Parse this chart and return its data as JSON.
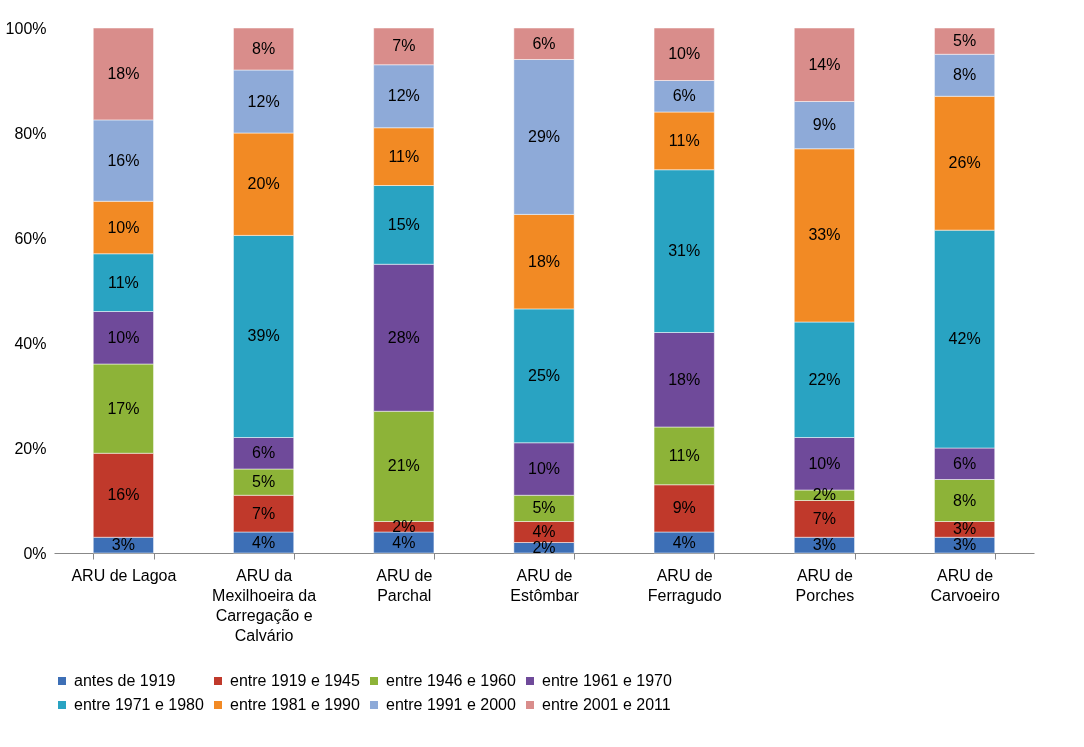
{
  "chart_data": {
    "type": "bar",
    "stacked": true,
    "categories": [
      "ARU de Lagoa",
      "ARU da Mexilhoeira da Carregação e Calvário",
      "ARU de Parchal",
      "ARU de Estômbar",
      "ARU de Ferragudo",
      "ARU de Porches",
      "ARU de Carvoeiro"
    ],
    "series": [
      {
        "name": "antes de 1919",
        "color": "#3d6fb6",
        "values": [
          3,
          4,
          4,
          2,
          4,
          3,
          3
        ],
        "value_labels": [
          "3%",
          "4%",
          "4%",
          "2%",
          "4%",
          "3%",
          "3%"
        ]
      },
      {
        "name": "entre 1919 e 1945",
        "color": "#c0392b",
        "values": [
          16,
          7,
          2,
          4,
          9,
          7,
          3
        ],
        "value_labels": [
          "16%",
          "7%",
          "2%",
          "4%",
          "9%",
          "7%",
          "3%"
        ]
      },
      {
        "name": "entre 1946 e 1960",
        "color": "#8db338",
        "values": [
          17,
          5,
          21,
          5,
          11,
          2,
          8
        ],
        "value_labels": [
          "17%",
          "5%",
          "21%",
          "5%",
          "11%",
          "2%",
          "8%"
        ]
      },
      {
        "name": "entre 1961 e 1970",
        "color": "#6f4a9a",
        "values": [
          10,
          6,
          28,
          10,
          18,
          10,
          6
        ],
        "value_labels": [
          "10%",
          "6%",
          "28%",
          "10%",
          "18%",
          "10%",
          "6%"
        ]
      },
      {
        "name": "entre 1971 e 1980",
        "color": "#29a3c2",
        "values": [
          11,
          38.5,
          15,
          25.5,
          31,
          22,
          41.5
        ],
        "value_labels": [
          "11%",
          "39%",
          "15%",
          "25%",
          "31%",
          "22%",
          "42%"
        ]
      },
      {
        "name": "entre 1981 e 1990",
        "color": "#f28a24",
        "values": [
          10,
          19.5,
          11,
          18,
          11,
          33,
          25.5
        ],
        "value_labels": [
          "10%",
          "20%",
          "11%",
          "18%",
          "11%",
          "33%",
          "26%"
        ]
      },
      {
        "name": "entre 1991 e 2000",
        "color": "#8eaad8",
        "values": [
          15.5,
          12,
          12,
          29.5,
          6,
          9,
          8
        ],
        "value_labels": [
          "16%",
          "12%",
          "12%",
          "29%",
          "6%",
          "9%",
          "8%"
        ]
      },
      {
        "name": "entre 2001 e 2011",
        "color": "#d98d8b",
        "values": [
          17.5,
          8,
          7,
          6,
          10,
          14,
          5
        ],
        "value_labels": [
          "18%",
          "8%",
          "7%",
          "6%",
          "10%",
          "14%",
          "5%"
        ]
      }
    ],
    "ylim": [
      0,
      100
    ],
    "yticks": [
      {
        "value": 0,
        "label": "0%"
      },
      {
        "value": 20,
        "label": "20%"
      },
      {
        "value": 40,
        "label": "40%"
      },
      {
        "value": 60,
        "label": "60%"
      },
      {
        "value": 80,
        "label": "80%"
      },
      {
        "value": 100,
        "label": "100%"
      }
    ],
    "grid": false,
    "legend": "bottom"
  }
}
